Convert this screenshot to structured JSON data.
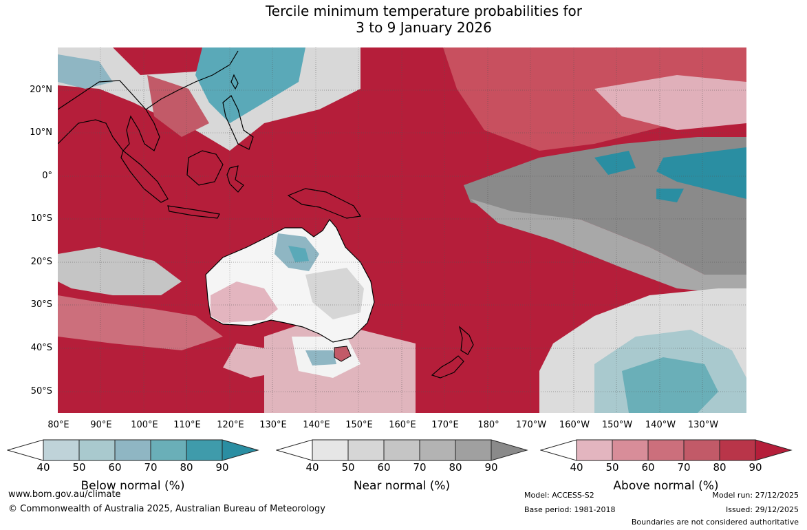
{
  "title": {
    "line1": "Tercile minimum temperature probabilities for",
    "line2": "3 to 9 January 2026"
  },
  "map": {
    "latitude_labels": [
      "20°N",
      "10°N",
      "0°",
      "10°S",
      "20°S",
      "30°S",
      "40°S",
      "50°S"
    ],
    "longitude_labels": [
      "80°E",
      "90°E",
      "100°E",
      "110°E",
      "120°E",
      "130°E",
      "140°E",
      "150°E",
      "160°E",
      "170°E",
      "180°",
      "170°W",
      "160°W",
      "150°W",
      "140°W",
      "130°W"
    ],
    "colors": {
      "above_90": "#b51e3a",
      "above_70": "#cf5f6e",
      "near": "#dcdcdc",
      "near_dark": "#8a8a8a",
      "below": "#5aa9b8",
      "land_line": "#000000"
    }
  },
  "legend": {
    "tick_values": [
      "40",
      "50",
      "60",
      "70",
      "80",
      "90"
    ],
    "below": {
      "label": "Below normal (%)",
      "colors": [
        "#bfd3d9",
        "#a9c9ce",
        "#8fb6c3",
        "#6aafb8",
        "#3f9bab",
        "#2a8ea2"
      ]
    },
    "near": {
      "label": "Near normal (%)",
      "colors": [
        "#e6e6e6",
        "#d6d6d6",
        "#c5c5c5",
        "#b3b3b3",
        "#a0a0a0",
        "#8a8a8a"
      ]
    },
    "above": {
      "label": "Above normal (%)",
      "colors": [
        "#e3b5bf",
        "#d88d99",
        "#cc6f7c",
        "#c25a68",
        "#b93549",
        "#b51e3a"
      ]
    }
  },
  "footer": {
    "website": "www.bom.gov.au/climate",
    "copyright": "© Commonwealth of Australia 2025, Australian Bureau of Meteorology",
    "model": "Model: ACCESS-S2",
    "base_period": "Base period: 1981-2018",
    "model_run": "Model run: 27/12/2025",
    "issued": "Issued: 29/12/2025",
    "disclaimer": "Boundaries are not considered authoritative"
  }
}
